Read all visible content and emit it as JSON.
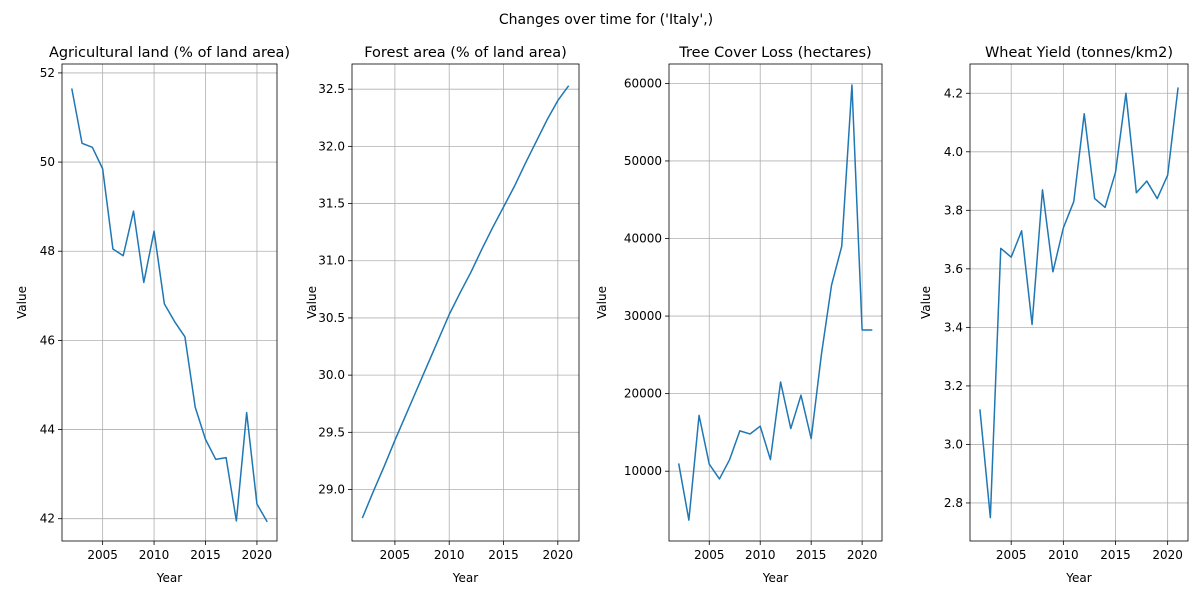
{
  "figure": {
    "suptitle": "Changes over time for ('Italy',)"
  },
  "chart_data": [
    {
      "type": "line",
      "title": "Agricultural land (% of land area)",
      "xlabel": "Year",
      "ylabel": "Value",
      "grid": true,
      "xlim": [
        2001.05,
        2021.95
      ],
      "ylim": [
        41.5,
        52.2
      ],
      "xticks": [
        2005,
        2010,
        2015,
        2020
      ],
      "yticks": [
        42,
        44,
        46,
        48,
        50,
        52
      ],
      "color": "#1f77b4",
      "series": [
        {
          "x": [
            2002,
            2003,
            2004,
            2005,
            2006,
            2007,
            2008,
            2009,
            2010,
            2011,
            2012,
            2013,
            2014,
            2015,
            2016,
            2017,
            2018,
            2019,
            2020,
            2021
          ],
          "values": [
            51.65,
            50.42,
            50.33,
            49.85,
            48.05,
            47.9,
            48.9,
            47.3,
            48.45,
            46.82,
            46.42,
            46.08,
            44.5,
            43.78,
            43.33,
            43.37,
            41.95,
            44.38,
            42.33,
            41.93
          ]
        }
      ]
    },
    {
      "type": "line",
      "title": "Forest area (% of land area)",
      "xlabel": "Year",
      "ylabel": "Value",
      "grid": true,
      "xlim": [
        2001.05,
        2021.95
      ],
      "ylim": [
        28.55,
        32.72
      ],
      "xticks": [
        2005,
        2010,
        2015,
        2020
      ],
      "yticks": [
        29.0,
        29.5,
        30.0,
        30.5,
        31.0,
        31.5,
        32.0,
        32.5
      ],
      "ytick_labels": [
        "29.0",
        "29.5",
        "30.0",
        "30.5",
        "31.0",
        "31.5",
        "32.0",
        "32.5"
      ],
      "color": "#1f77b4",
      "series": [
        {
          "x": [
            2002,
            2003,
            2004,
            2005,
            2006,
            2007,
            2008,
            2009,
            2010,
            2011,
            2012,
            2013,
            2014,
            2015,
            2016,
            2017,
            2018,
            2019,
            2020,
            2021
          ],
          "values": [
            28.75,
            28.98,
            29.2,
            29.43,
            29.65,
            29.87,
            30.09,
            30.31,
            30.53,
            30.72,
            30.9,
            31.1,
            31.29,
            31.47,
            31.65,
            31.85,
            32.04,
            32.23,
            32.4,
            32.53
          ]
        }
      ]
    },
    {
      "type": "line",
      "title": "Tree Cover Loss (hectares)",
      "xlabel": "Year",
      "ylabel": "Value",
      "grid": true,
      "xlim": [
        2001.05,
        2021.95
      ],
      "ylim": [
        1000,
        62500
      ],
      "xticks": [
        2005,
        2010,
        2015,
        2020
      ],
      "yticks": [
        10000,
        20000,
        30000,
        40000,
        50000,
        60000
      ],
      "color": "#1f77b4",
      "series": [
        {
          "x": [
            2002,
            2003,
            2004,
            2005,
            2006,
            2007,
            2008,
            2009,
            2010,
            2011,
            2012,
            2013,
            2014,
            2015,
            2016,
            2017,
            2018,
            2019,
            2020,
            2021
          ],
          "values": [
            11000,
            3700,
            17200,
            10900,
            9000,
            11500,
            15200,
            14800,
            15800,
            11500,
            21500,
            15500,
            19800,
            14200,
            25000,
            34000,
            39000,
            59800,
            28200,
            28200
          ]
        }
      ]
    },
    {
      "type": "line",
      "title": "Wheat Yield (tonnes/km2)",
      "xlabel": "Year",
      "ylabel": "Value",
      "grid": true,
      "xlim": [
        2001.05,
        2021.95
      ],
      "ylim": [
        2.67,
        4.3
      ],
      "xticks": [
        2005,
        2010,
        2015,
        2020
      ],
      "yticks": [
        2.8,
        3.0,
        3.2,
        3.4,
        3.6,
        3.8,
        4.0,
        4.2
      ],
      "ytick_labels": [
        "2.8",
        "3.0",
        "3.2",
        "3.4",
        "3.6",
        "3.8",
        "4.0",
        "4.2"
      ],
      "color": "#1f77b4",
      "series": [
        {
          "x": [
            2002,
            2003,
            2004,
            2005,
            2006,
            2007,
            2008,
            2009,
            2010,
            2011,
            2012,
            2013,
            2014,
            2015,
            2016,
            2017,
            2018,
            2019,
            2020,
            2021
          ],
          "values": [
            3.12,
            2.75,
            3.67,
            3.64,
            3.73,
            3.41,
            3.87,
            3.59,
            3.74,
            3.83,
            4.13,
            3.84,
            3.81,
            3.93,
            4.2,
            3.86,
            3.9,
            3.84,
            3.92,
            4.22
          ]
        }
      ]
    }
  ]
}
